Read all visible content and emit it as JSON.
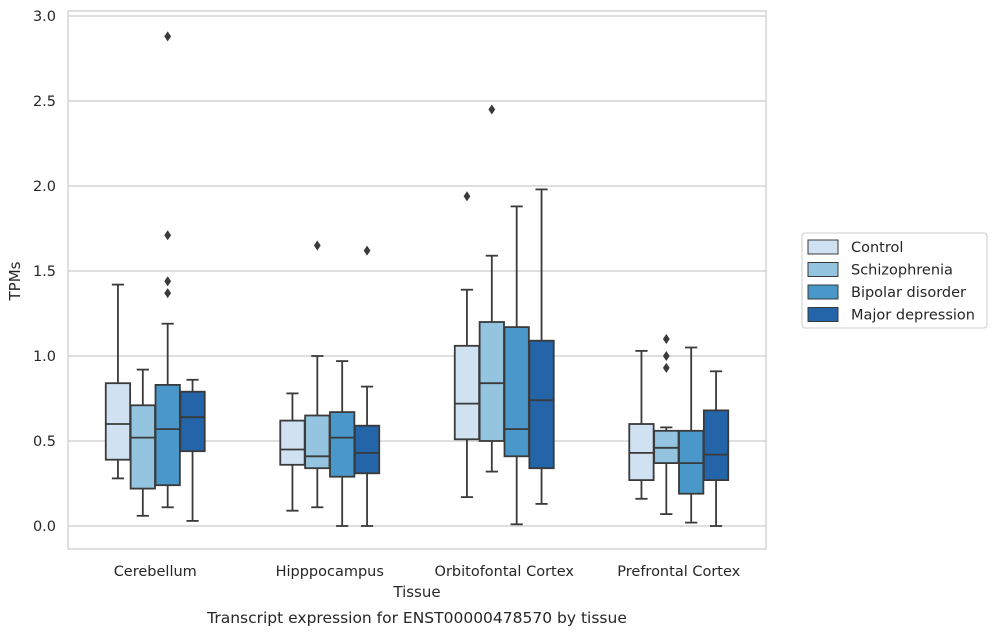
{
  "chart_data": {
    "type": "boxplot",
    "title": "",
    "caption": "Transcript expression for ENST00000478570 by tissue",
    "xlabel": "Tissue",
    "ylabel": "TPMs",
    "ylim": [
      -0.13,
      3.03
    ],
    "yticks": [
      0.0,
      0.5,
      1.0,
      1.5,
      2.0,
      2.5,
      3.0
    ],
    "ytick_labels": [
      "0.0",
      "0.5",
      "1.0",
      "1.5",
      "2.0",
      "2.5",
      "3.0"
    ],
    "grid": "horizontal",
    "legend_position": "right",
    "categories": [
      "Cerebellum",
      "Hipppocampus",
      "Orbitofontal Cortex",
      "Prefrontal Cortex"
    ],
    "series": [
      {
        "name": "Control",
        "color": "#d0e1f2",
        "boxes": [
          {
            "whislo": 0.28,
            "q1": 0.39,
            "med": 0.6,
            "q3": 0.84,
            "whishi": 1.42,
            "fliers": []
          },
          {
            "whislo": 0.09,
            "q1": 0.36,
            "med": 0.45,
            "q3": 0.62,
            "whishi": 0.78,
            "fliers": []
          },
          {
            "whislo": 0.17,
            "q1": 0.51,
            "med": 0.72,
            "q3": 1.06,
            "whishi": 1.39,
            "fliers": [
              1.94
            ]
          },
          {
            "whislo": 0.16,
            "q1": 0.27,
            "med": 0.43,
            "q3": 0.6,
            "whishi": 1.03,
            "fliers": []
          }
        ]
      },
      {
        "name": "Schizophrenia",
        "color": "#94c4df",
        "boxes": [
          {
            "whislo": 0.06,
            "q1": 0.22,
            "med": 0.52,
            "q3": 0.71,
            "whishi": 0.92,
            "fliers": []
          },
          {
            "whislo": 0.11,
            "q1": 0.34,
            "med": 0.41,
            "q3": 0.65,
            "whishi": 1.0,
            "fliers": [
              1.65
            ]
          },
          {
            "whislo": 0.32,
            "q1": 0.5,
            "med": 0.84,
            "q3": 1.2,
            "whishi": 1.59,
            "fliers": [
              2.45
            ]
          },
          {
            "whislo": 0.07,
            "q1": 0.37,
            "med": 0.46,
            "q3": 0.56,
            "whishi": 0.58,
            "fliers": [
              0.93,
              1.0,
              1.1
            ]
          }
        ]
      },
      {
        "name": "Bipolar disorder",
        "color": "#4a98c9",
        "boxes": [
          {
            "whislo": 0.11,
            "q1": 0.24,
            "med": 0.57,
            "q3": 0.83,
            "whishi": 1.19,
            "fliers": [
              1.37,
              1.44,
              1.71,
              2.88
            ]
          },
          {
            "whislo": 0.0,
            "q1": 0.29,
            "med": 0.52,
            "q3": 0.67,
            "whishi": 0.97,
            "fliers": []
          },
          {
            "whislo": 0.01,
            "q1": 0.41,
            "med": 0.57,
            "q3": 1.17,
            "whishi": 1.88,
            "fliers": []
          },
          {
            "whislo": 0.02,
            "q1": 0.19,
            "med": 0.37,
            "q3": 0.56,
            "whishi": 1.05,
            "fliers": []
          }
        ]
      },
      {
        "name": "Major depression",
        "color": "#2464a9",
        "boxes": [
          {
            "whislo": 0.03,
            "q1": 0.44,
            "med": 0.64,
            "q3": 0.79,
            "whishi": 0.86,
            "fliers": []
          },
          {
            "whislo": 0.0,
            "q1": 0.31,
            "med": 0.43,
            "q3": 0.59,
            "whishi": 0.82,
            "fliers": [
              1.62
            ]
          },
          {
            "whislo": 0.13,
            "q1": 0.34,
            "med": 0.74,
            "q3": 1.09,
            "whishi": 1.98,
            "fliers": []
          },
          {
            "whislo": 0.0,
            "q1": 0.27,
            "med": 0.42,
            "q3": 0.68,
            "whishi": 0.91,
            "fliers": []
          }
        ]
      }
    ]
  }
}
